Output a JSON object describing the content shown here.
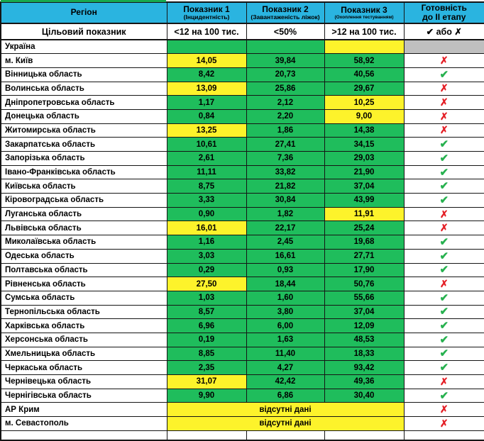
{
  "table": {
    "header": {
      "region": "Регіон",
      "col1_title": "Показник 1",
      "col1_sub": "(Інцидентність)",
      "col2_title": "Показник 2",
      "col2_sub": "(Завантаженість ліжок)",
      "col3_title": "Показник 3",
      "col3_sub": "(Охоплення тестуванням)",
      "ready_title": "Готовність",
      "ready_sub": "до ІІ етапу"
    },
    "target_row": {
      "label": "Цільовий показник",
      "p1": "<12 на 100 тис.",
      "p2": "<50%",
      "p3": ">12 на 100 тис.",
      "ready": "✔ або ✗"
    },
    "no_data_label": "відсутні дані",
    "rows": [
      {
        "region": "Україна",
        "type": "summary",
        "p1": "",
        "p1_bg": "green",
        "p2": "",
        "p2_bg": "green",
        "p3": "",
        "p3_bg": "yellow",
        "ready": "none"
      },
      {
        "region": "м. Київ",
        "type": "data",
        "p1": "14,05",
        "p1_bg": "yellow",
        "p2": "39,84",
        "p2_bg": "green",
        "p3": "58,92",
        "p3_bg": "green",
        "ready": "cross"
      },
      {
        "region": "Вінницька область",
        "type": "data",
        "p1": "8,42",
        "p1_bg": "green",
        "p2": "20,73",
        "p2_bg": "green",
        "p3": "40,56",
        "p3_bg": "green",
        "ready": "check"
      },
      {
        "region": "Волинська область",
        "type": "data",
        "p1": "13,09",
        "p1_bg": "yellow",
        "p2": "25,86",
        "p2_bg": "green",
        "p3": "29,67",
        "p3_bg": "green",
        "ready": "cross"
      },
      {
        "region": "Дніпропетровська область",
        "type": "data",
        "p1": "1,17",
        "p1_bg": "green",
        "p2": "2,12",
        "p2_bg": "green",
        "p3": "10,25",
        "p3_bg": "yellow",
        "ready": "cross"
      },
      {
        "region": "Донецька область",
        "type": "data",
        "p1": "0,84",
        "p1_bg": "green",
        "p2": "2,20",
        "p2_bg": "green",
        "p3": "9,00",
        "p3_bg": "yellow",
        "ready": "cross"
      },
      {
        "region": "Житомирська область",
        "type": "data",
        "p1": "13,25",
        "p1_bg": "yellow",
        "p2": "1,86",
        "p2_bg": "green",
        "p3": "14,38",
        "p3_bg": "green",
        "ready": "cross"
      },
      {
        "region": "Закарпатська область",
        "type": "data",
        "p1": "10,61",
        "p1_bg": "green",
        "p2": "27,41",
        "p2_bg": "green",
        "p3": "34,15",
        "p3_bg": "green",
        "ready": "check"
      },
      {
        "region": "Запорізька область",
        "type": "data",
        "p1": "2,61",
        "p1_bg": "green",
        "p2": "7,36",
        "p2_bg": "green",
        "p3": "29,03",
        "p3_bg": "green",
        "ready": "check"
      },
      {
        "region": "Івано-Франківська область",
        "type": "data",
        "p1": "11,11",
        "p1_bg": "green",
        "p2": "33,82",
        "p2_bg": "green",
        "p3": "21,90",
        "p3_bg": "green",
        "ready": "check"
      },
      {
        "region": "Київська область",
        "type": "data",
        "p1": "8,75",
        "p1_bg": "green",
        "p2": "21,82",
        "p2_bg": "green",
        "p3": "37,04",
        "p3_bg": "green",
        "ready": "check"
      },
      {
        "region": "Кіровоградська область",
        "type": "data",
        "p1": "3,33",
        "p1_bg": "green",
        "p2": "30,84",
        "p2_bg": "green",
        "p3": "43,99",
        "p3_bg": "green",
        "ready": "check"
      },
      {
        "region": "Луганська область",
        "type": "data",
        "p1": "0,90",
        "p1_bg": "green",
        "p2": "1,82",
        "p2_bg": "green",
        "p3": "11,91",
        "p3_bg": "yellow",
        "ready": "cross"
      },
      {
        "region": "Львівська область",
        "type": "data",
        "p1": "16,01",
        "p1_bg": "yellow",
        "p2": "22,17",
        "p2_bg": "green",
        "p3": "25,24",
        "p3_bg": "green",
        "ready": "cross"
      },
      {
        "region": "Миколаївська область",
        "type": "data",
        "p1": "1,16",
        "p1_bg": "green",
        "p2": "2,45",
        "p2_bg": "green",
        "p3": "19,68",
        "p3_bg": "green",
        "ready": "check"
      },
      {
        "region": "Одеська область",
        "type": "data",
        "p1": "3,03",
        "p1_bg": "green",
        "p2": "16,61",
        "p2_bg": "green",
        "p3": "27,71",
        "p3_bg": "green",
        "ready": "check"
      },
      {
        "region": "Полтавська область",
        "type": "data",
        "p1": "0,29",
        "p1_bg": "green",
        "p2": "0,93",
        "p2_bg": "green",
        "p3": "17,90",
        "p3_bg": "green",
        "ready": "check"
      },
      {
        "region": "Рівненська область",
        "type": "data",
        "p1": "27,50",
        "p1_bg": "yellow",
        "p2": "18,44",
        "p2_bg": "green",
        "p3": "50,76",
        "p3_bg": "green",
        "ready": "cross"
      },
      {
        "region": "Сумська область",
        "type": "data",
        "p1": "1,03",
        "p1_bg": "green",
        "p2": "1,60",
        "p2_bg": "green",
        "p3": "55,66",
        "p3_bg": "green",
        "ready": "check"
      },
      {
        "region": "Тернопільська область",
        "type": "data",
        "p1": "8,57",
        "p1_bg": "green",
        "p2": "3,80",
        "p2_bg": "green",
        "p3": "37,04",
        "p3_bg": "green",
        "ready": "check"
      },
      {
        "region": "Харківська область",
        "type": "data",
        "p1": "6,96",
        "p1_bg": "green",
        "p2": "6,00",
        "p2_bg": "green",
        "p3": "12,09",
        "p3_bg": "green",
        "ready": "check"
      },
      {
        "region": "Херсонська область",
        "type": "data",
        "p1": "0,19",
        "p1_bg": "green",
        "p2": "1,63",
        "p2_bg": "green",
        "p3": "48,53",
        "p3_bg": "green",
        "ready": "check"
      },
      {
        "region": "Хмельницька область",
        "type": "data",
        "p1": "8,85",
        "p1_bg": "green",
        "p2": "11,40",
        "p2_bg": "green",
        "p3": "18,33",
        "p3_bg": "green",
        "ready": "check"
      },
      {
        "region": "Черкаська область",
        "type": "data",
        "p1": "2,35",
        "p1_bg": "green",
        "p2": "4,27",
        "p2_bg": "green",
        "p3": "93,42",
        "p3_bg": "green",
        "ready": "check"
      },
      {
        "region": "Чернівецька область",
        "type": "data",
        "p1": "31,07",
        "p1_bg": "yellow",
        "p2": "42,42",
        "p2_bg": "green",
        "p3": "49,36",
        "p3_bg": "green",
        "ready": "cross"
      },
      {
        "region": "Чернігівська область",
        "type": "data",
        "p1": "9,90",
        "p1_bg": "green",
        "p2": "6,86",
        "p2_bg": "green",
        "p3": "30,40",
        "p3_bg": "green",
        "ready": "check"
      },
      {
        "region": "АР Крим",
        "type": "nodata",
        "ready": "cross"
      },
      {
        "region": "м. Севастополь",
        "type": "nodata",
        "ready": "cross"
      }
    ]
  },
  "symbols": {
    "check": "✔",
    "cross": "✗"
  },
  "colors": {
    "header_blue": "#2ab4e0",
    "green_fill": "#1fbd5c",
    "green_dark": "#17a94f",
    "yellow_fill": "#fdf32b",
    "gray_fill": "#bfbfbf",
    "check_green": "#27b14f",
    "cross_red": "#e41e25",
    "border": "#151515"
  }
}
